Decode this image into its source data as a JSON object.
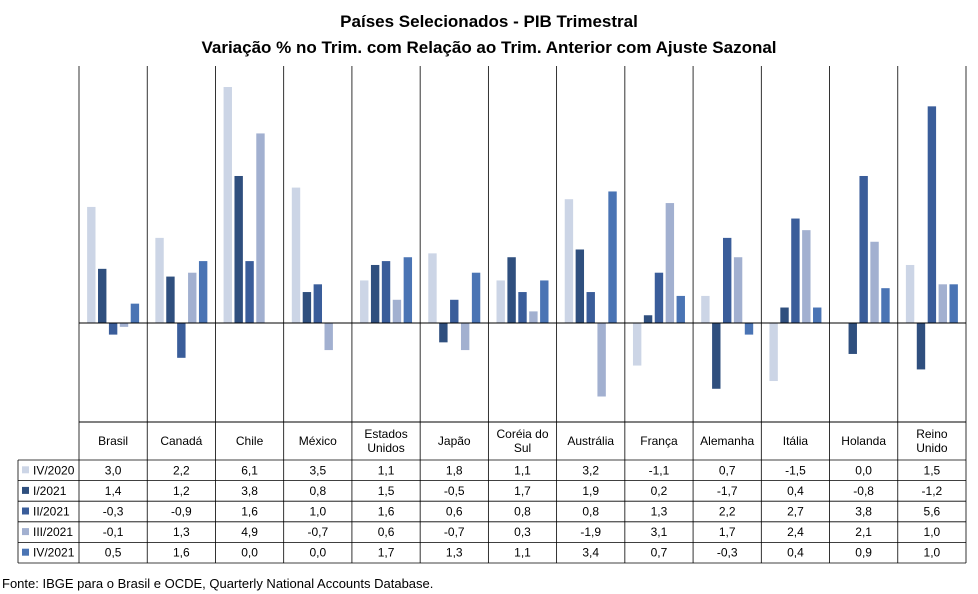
{
  "chart_data": {
    "type": "bar",
    "title": "Países Selecionados  - PIB Trimestral",
    "subtitle": "Variação % no Trim. com Relação ao Trim. Anterior com Ajuste Sazonal",
    "categories": [
      "Brasil",
      "Canadá",
      "Chile",
      "México",
      "Estados Unidos",
      "Japão",
      "Coréia do Sul",
      "Austrália",
      "França",
      "Alemanha",
      "Itália",
      "Holanda",
      "Reino Unido"
    ],
    "categories_display": [
      [
        "Brasil"
      ],
      [
        "Canadá"
      ],
      [
        "Chile"
      ],
      [
        "México"
      ],
      [
        "Estados",
        "Unidos"
      ],
      [
        "Japão"
      ],
      [
        "Coréia do",
        "Sul"
      ],
      [
        "Austrália"
      ],
      [
        "França"
      ],
      [
        "Alemanha"
      ],
      [
        "Itália"
      ],
      [
        "Holanda"
      ],
      [
        "Reino",
        "Unido"
      ]
    ],
    "series": [
      {
        "name": "IV/2020",
        "color": "#ccd5e6",
        "values": [
          3.0,
          2.2,
          6.1,
          3.5,
          1.1,
          1.8,
          1.1,
          3.2,
          -1.1,
          0.7,
          -1.5,
          0.0,
          1.5
        ],
        "labels": [
          "3,0",
          "2,2",
          "6,1",
          "3,5",
          "1,1",
          "1,8",
          "1,1",
          "3,2",
          "-1,1",
          "0,7",
          "-1,5",
          "0,0",
          "1,5"
        ]
      },
      {
        "name": "I/2021",
        "color": "#2f4f7e",
        "values": [
          1.4,
          1.2,
          3.8,
          0.8,
          1.5,
          -0.5,
          1.7,
          1.9,
          0.2,
          -1.7,
          0.4,
          -0.8,
          -1.2
        ],
        "labels": [
          "1,4",
          "1,2",
          "3,8",
          "0,8",
          "1,5",
          "-0,5",
          "1,7",
          "1,9",
          "0,2",
          "-1,7",
          "0,4",
          "-0,8",
          "-1,2"
        ]
      },
      {
        "name": "II/2021",
        "color": "#3a5d9a",
        "values": [
          -0.3,
          -0.9,
          1.6,
          1.0,
          1.6,
          0.6,
          0.8,
          0.8,
          1.3,
          2.2,
          2.7,
          3.8,
          5.6
        ],
        "labels": [
          "-0,3",
          "-0,9",
          "1,6",
          "1,0",
          "1,6",
          "0,6",
          "0,8",
          "0,8",
          "1,3",
          "2,2",
          "2,7",
          "3,8",
          "5,6"
        ]
      },
      {
        "name": "III/2021",
        "color": "#a2b0d0",
        "values": [
          -0.1,
          1.3,
          4.9,
          -0.7,
          0.6,
          -0.7,
          0.3,
          -1.9,
          3.1,
          1.7,
          2.4,
          2.1,
          1.0
        ],
        "labels": [
          "-0,1",
          "1,3",
          "4,9",
          "-0,7",
          "0,6",
          "-0,7",
          "0,3",
          "-1,9",
          "3,1",
          "1,7",
          "2,4",
          "2,1",
          "1,0"
        ]
      },
      {
        "name": "IV/2021",
        "color": "#4a74b4",
        "values": [
          0.5,
          1.6,
          0.0,
          0.0,
          1.7,
          1.3,
          1.1,
          3.4,
          0.7,
          -0.3,
          0.4,
          0.9,
          1.0
        ],
        "labels": [
          "0,5",
          "1,6",
          "0,0",
          "0,0",
          "1,7",
          "1,3",
          "1,1",
          "3,4",
          "0,7",
          "-0,3",
          "0,4",
          "0,9",
          "1,0"
        ]
      }
    ],
    "ylim": [
      -2.5,
      6.5
    ],
    "grid": false,
    "legend": "left data table"
  },
  "source": "Fonte: IBGE para o Brasil e OCDE, Quarterly National Accounts Database."
}
